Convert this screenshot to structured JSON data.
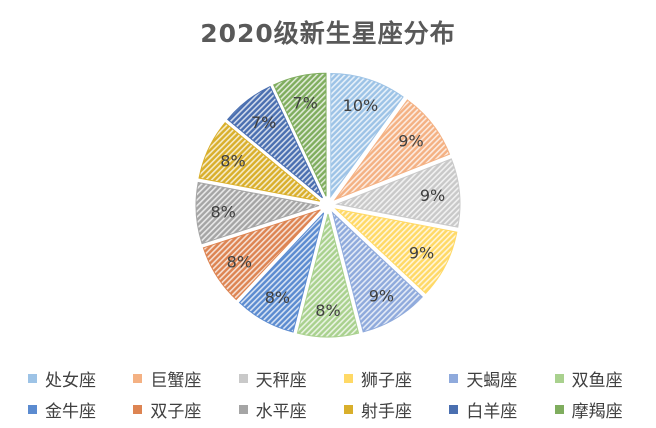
{
  "chart_data": {
    "type": "pie",
    "title": "2020级新生星座分布",
    "exploded": true,
    "start_angle_deg": 0,
    "legend_position": "bottom",
    "slices": [
      {
        "label": "处女座",
        "value": 10,
        "display": "10%",
        "color": "#9DC3E6"
      },
      {
        "label": "巨蟹座",
        "value": 9,
        "display": "9%",
        "color": "#F4B183"
      },
      {
        "label": "天秤座",
        "value": 9,
        "display": "9%",
        "color": "#C9C9C9"
      },
      {
        "label": "狮子座",
        "value": 9,
        "display": "9%",
        "color": "#FFD966"
      },
      {
        "label": "天蝎座",
        "value": 9,
        "display": "9%",
        "color": "#8FAADC"
      },
      {
        "label": "双鱼座",
        "value": 8,
        "display": "8%",
        "color": "#A9D18E"
      },
      {
        "label": "金牛座",
        "value": 8,
        "display": "8%",
        "color": "#5B8BD0"
      },
      {
        "label": "双子座",
        "value": 8,
        "display": "8%",
        "color": "#DD8452"
      },
      {
        "label": "水平座",
        "value": 8,
        "display": "8%",
        "color": "#A5A5A5"
      },
      {
        "label": "射手座",
        "value": 8,
        "display": "8%",
        "color": "#D9AF2B"
      },
      {
        "label": "白羊座",
        "value": 7,
        "display": "7%",
        "color": "#4A6FB0"
      },
      {
        "label": "摩羯座",
        "value": 7,
        "display": "7%",
        "color": "#7FAD5E"
      }
    ]
  }
}
